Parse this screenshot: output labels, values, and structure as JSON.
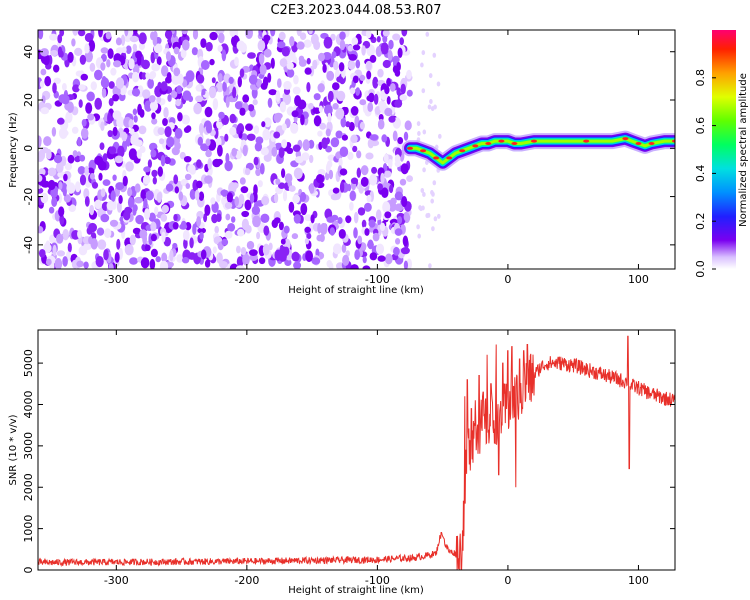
{
  "title": "C2E3.2023.044.08.53.R07",
  "chart_data": [
    {
      "type": "heatmap",
      "xlabel": "Height of straight line (km)",
      "ylabel": "Frequency (Hz)",
      "xlim": [
        -360,
        128
      ],
      "ylim": [
        -50,
        49
      ],
      "x_ticks": [
        -300,
        -200,
        -100,
        0,
        100
      ],
      "y_ticks": [
        -40,
        -20,
        0,
        20,
        40
      ],
      "noise_region_x": [
        -360,
        -75
      ],
      "signal_ridge": {
        "x": [
          -75,
          -70,
          -65,
          -60,
          -55,
          -50,
          -45,
          -40,
          -35,
          -30,
          -25,
          -20,
          -15,
          -10,
          -5,
          0,
          5,
          10,
          20,
          40,
          60,
          80,
          90,
          95,
          100,
          105,
          110,
          120,
          128
        ],
        "y": [
          0,
          0,
          -1,
          -2,
          -4,
          -6,
          -4,
          -2,
          -1,
          0,
          1,
          2,
          2,
          3,
          3,
          3,
          2,
          2,
          3,
          3,
          3,
          3,
          4,
          3,
          2,
          1,
          2,
          3,
          3
        ]
      },
      "colorbar": {
        "label": "Normalized spectral amplitude",
        "range": [
          0,
          1
        ],
        "ticks": [
          0.0,
          0.2,
          0.4,
          0.6,
          0.8
        ],
        "tick_labels": [
          "0.0",
          "0.2",
          "0.4",
          "0.6",
          "0.8"
        ],
        "colormap": "rainbow"
      },
      "noise_color": "#7a00f0"
    },
    {
      "type": "line",
      "xlabel": "Height of straight line (km)",
      "ylabel": "SNR (10 * v/v)",
      "xlim": [
        -360,
        128
      ],
      "ylim": [
        0,
        5800
      ],
      "x_ticks": [
        -300,
        -200,
        -100,
        0,
        100
      ],
      "y_ticks": [
        0,
        1000,
        2000,
        3000,
        4000,
        5000
      ],
      "series_color": "#e8302a",
      "envelope": {
        "x": [
          -360,
          -300,
          -200,
          -100,
          -70,
          -55,
          -52,
          -50,
          -48,
          -45,
          -40,
          -37,
          -35,
          -33,
          -30,
          -25,
          -20,
          -15,
          -10,
          -5,
          0,
          5,
          10,
          15,
          20,
          25,
          30,
          40,
          50,
          60,
          70,
          80,
          90,
          92,
          93,
          95,
          100,
          110,
          120,
          128
        ],
        "y": [
          180,
          190,
          210,
          250,
          300,
          400,
          800,
          900,
          600,
          450,
          400,
          350,
          600,
          2000,
          3000,
          3400,
          3500,
          3600,
          3700,
          3800,
          3900,
          4100,
          4300,
          4500,
          4700,
          4900,
          5000,
          5000,
          4950,
          4850,
          4750,
          4650,
          4550,
          4600,
          4500,
          4450,
          4400,
          4250,
          4150,
          4100
        ]
      },
      "spikes": [
        {
          "x": -33,
          "y": 4200
        },
        {
          "x": -31,
          "y": 4600
        },
        {
          "x": -28,
          "y": 3900
        },
        {
          "x": -25,
          "y": 4100
        },
        {
          "x": -22,
          "y": 4700
        },
        {
          "x": -19,
          "y": 4300
        },
        {
          "x": -16,
          "y": 5200
        },
        {
          "x": -13,
          "y": 4500
        },
        {
          "x": -9,
          "y": 5450
        },
        {
          "x": -7,
          "y": 2300
        },
        {
          "x": -4,
          "y": 5000
        },
        {
          "x": 0,
          "y": 5300
        },
        {
          "x": 3,
          "y": 5400
        },
        {
          "x": 6,
          "y": 2000
        },
        {
          "x": 9,
          "y": 5100
        },
        {
          "x": 12,
          "y": 5300
        },
        {
          "x": 15,
          "y": 5450
        },
        {
          "x": 92,
          "y": 5650
        },
        {
          "x": 93,
          "y": 2450
        }
      ]
    }
  ]
}
